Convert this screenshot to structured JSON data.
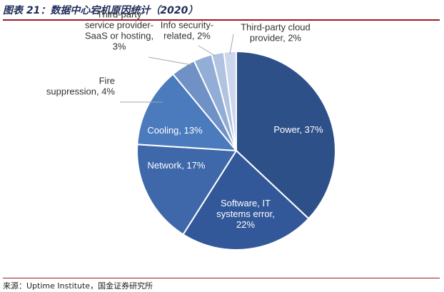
{
  "title": "图表 21：数据中心宕机原因统计（2020）",
  "source": "来源：Uptime Institute，国金证券研究所",
  "chart_data": {
    "type": "pie",
    "title": "图表 21：数据中心宕机原因统计（2020）",
    "categories": [
      "Power",
      "Software, IT systems error",
      "Network",
      "Cooling",
      "Fire suppression",
      "Third-party service provider-SaaS or hosting",
      "Info security-related",
      "Third-party cloud provider"
    ],
    "values": [
      37,
      22,
      17,
      13,
      4,
      3,
      2,
      2
    ],
    "unit": "%",
    "labels": [
      [
        "Power, 37%"
      ],
      [
        "Software, IT",
        "systems error,",
        "22%"
      ],
      [
        "Network, 17%"
      ],
      [
        "Cooling, 13%"
      ],
      [
        "Fire",
        "suppression, 4%"
      ],
      [
        "Third-party",
        "service provider-",
        "SaaS or hosting,",
        "3%"
      ],
      [
        "Info security-",
        "related, 2%"
      ],
      [
        "Third-party cloud",
        "provider, 2%"
      ]
    ],
    "colors": [
      "#2e5089",
      "#33589a",
      "#3e68a9",
      "#4b7bbd",
      "#6f91c6",
      "#93aed6",
      "#b2c3e2",
      "#ccd6ec"
    ],
    "label_color": [
      "#ffffff",
      "#ffffff",
      "#ffffff",
      "#ffffff",
      "#333333",
      "#333333",
      "#333333",
      "#333333"
    ],
    "legend": "none",
    "start_angle_deg": 0,
    "direction": "clockwise"
  }
}
